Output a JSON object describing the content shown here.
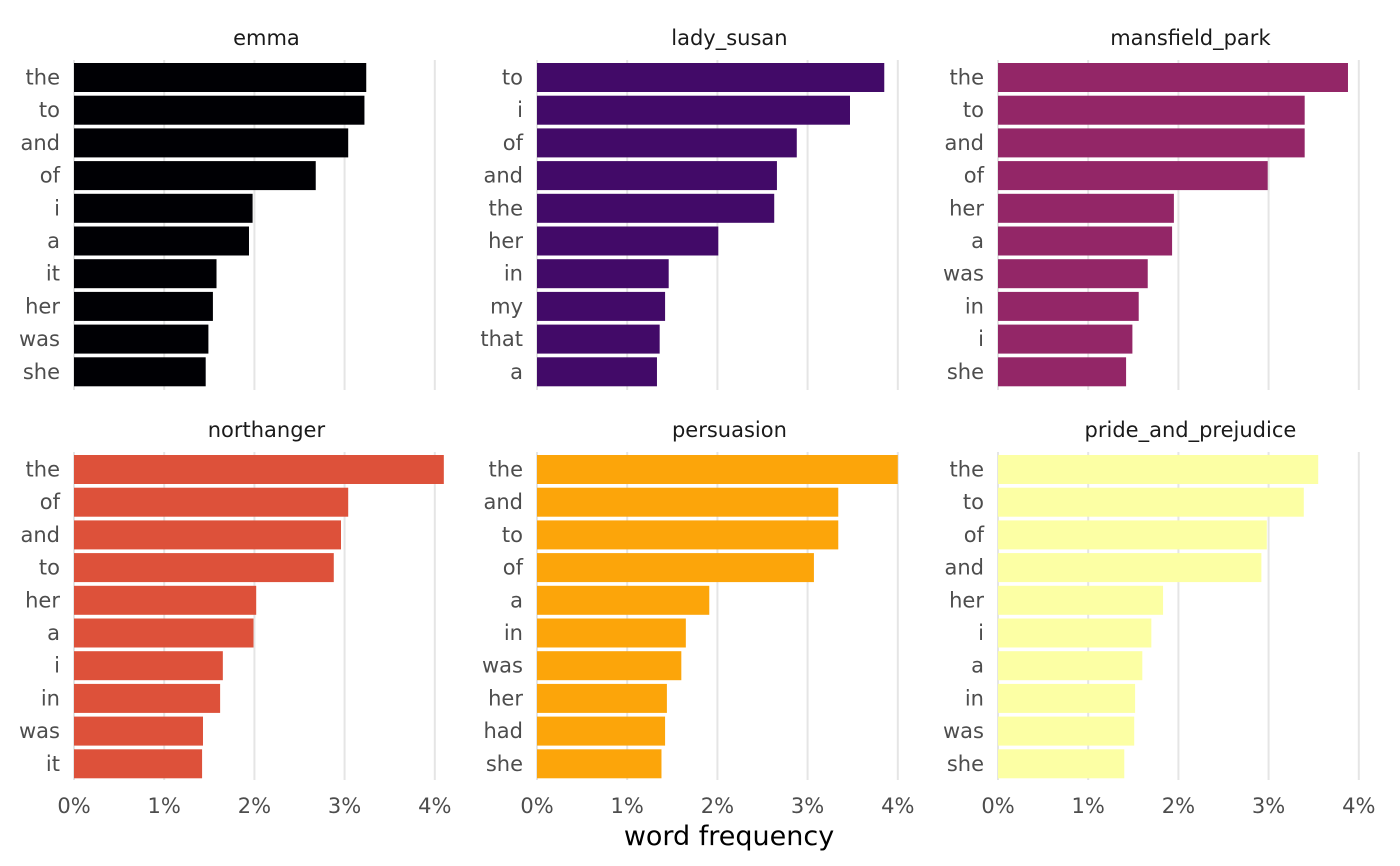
{
  "chart_data": {
    "type": "bar",
    "orientation": "horizontal",
    "xlabel": "word frequency",
    "x_ticks": [
      "0%",
      "1%",
      "2%",
      "3%",
      "4%"
    ],
    "xlim": [
      0,
      4.2
    ],
    "grid": true,
    "facets": [
      {
        "name": "emma",
        "color": "#000004",
        "categories": [
          "the",
          "to",
          "and",
          "of",
          "i",
          "a",
          "it",
          "her",
          "was",
          "she"
        ],
        "values": [
          3.24,
          3.22,
          3.04,
          2.68,
          1.98,
          1.94,
          1.58,
          1.54,
          1.49,
          1.46
        ]
      },
      {
        "name": "lady_susan",
        "color": "#420a68",
        "categories": [
          "to",
          "i",
          "of",
          "and",
          "the",
          "her",
          "in",
          "my",
          "that",
          "a"
        ],
        "values": [
          3.85,
          3.47,
          2.88,
          2.66,
          2.63,
          2.01,
          1.46,
          1.42,
          1.36,
          1.33
        ]
      },
      {
        "name": "mansfield_park",
        "color": "#932667",
        "categories": [
          "the",
          "to",
          "and",
          "of",
          "her",
          "a",
          "was",
          "in",
          "i",
          "she"
        ],
        "values": [
          3.88,
          3.4,
          3.4,
          2.99,
          1.95,
          1.93,
          1.66,
          1.56,
          1.49,
          1.42
        ]
      },
      {
        "name": "northanger",
        "color": "#dd513a",
        "categories": [
          "the",
          "of",
          "and",
          "to",
          "her",
          "a",
          "i",
          "in",
          "was",
          "it"
        ],
        "values": [
          4.1,
          3.04,
          2.96,
          2.88,
          2.02,
          1.99,
          1.65,
          1.62,
          1.43,
          1.42
        ]
      },
      {
        "name": "persuasion",
        "color": "#fca50a",
        "categories": [
          "the",
          "and",
          "to",
          "of",
          "a",
          "in",
          "was",
          "her",
          "had",
          "she"
        ],
        "values": [
          4.0,
          3.34,
          3.34,
          3.07,
          1.91,
          1.65,
          1.6,
          1.44,
          1.42,
          1.38
        ]
      },
      {
        "name": "pride_and_prejudice",
        "color": "#fcffa4",
        "categories": [
          "the",
          "to",
          "of",
          "and",
          "her",
          "i",
          "a",
          "in",
          "was",
          "she"
        ],
        "values": [
          3.55,
          3.39,
          2.98,
          2.92,
          1.83,
          1.7,
          1.6,
          1.52,
          1.51,
          1.4
        ]
      }
    ]
  }
}
